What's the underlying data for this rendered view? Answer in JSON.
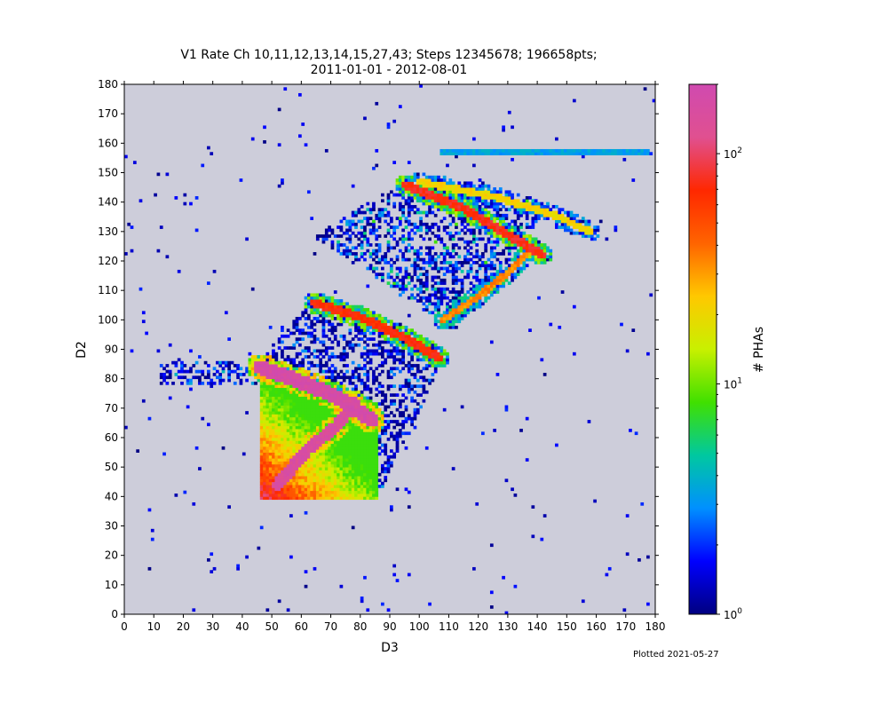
{
  "chart_data": {
    "type": "heatmap",
    "title_line1": "V1 Rate Ch 10,11,12,13,14,15,27,43; Steps 12345678; 196658pts;",
    "title_line2": "2011-01-01 - 2012-08-01",
    "xlabel": "D3",
    "ylabel": "D2",
    "xlim": [
      0,
      180
    ],
    "ylim": [
      0,
      180
    ],
    "xticks": [
      0,
      10,
      20,
      30,
      40,
      50,
      60,
      70,
      80,
      90,
      100,
      110,
      120,
      130,
      140,
      150,
      160,
      170,
      180
    ],
    "yticks": [
      0,
      10,
      20,
      30,
      40,
      50,
      60,
      70,
      80,
      90,
      100,
      110,
      120,
      130,
      140,
      150,
      160,
      170,
      180
    ],
    "bin_size": 1,
    "background_color": "#cdcdda",
    "colorbar": {
      "label": "# PHAs",
      "scale": "log",
      "range": [
        1,
        200
      ],
      "ticks": [
        {
          "value": 1,
          "base": "10",
          "exp": "0"
        },
        {
          "value": 10,
          "base": "10",
          "exp": "1"
        },
        {
          "value": 100,
          "base": "10",
          "exp": "2"
        }
      ],
      "colormap": [
        "#000080",
        "#0000ff",
        "#0090ff",
        "#00c8a0",
        "#40e000",
        "#c8f000",
        "#ffc800",
        "#ff6400",
        "#ff2800",
        "#e05090",
        "#d04ab0"
      ]
    },
    "features": [
      {
        "name": "main-track",
        "points": [
          [
            46,
            84
          ],
          [
            60,
            79
          ],
          [
            72,
            74
          ],
          [
            84,
            66
          ]
        ],
        "half_width": 2.5,
        "value": 200
      },
      {
        "name": "main-triangle",
        "polygon": [
          [
            46,
            39
          ],
          [
            46,
            84
          ],
          [
            86,
            72
          ],
          [
            86,
            39
          ]
        ],
        "value_range": [
          8,
          120
        ]
      },
      {
        "name": "central-stripe",
        "points": [
          [
            52,
            44
          ],
          [
            62,
            56
          ],
          [
            72,
            64
          ],
          [
            78,
            72
          ]
        ],
        "half_width": 2,
        "value": 180
      },
      {
        "name": "middle-band",
        "points": [
          [
            64,
            106
          ],
          [
            80,
            101
          ],
          [
            95,
            94
          ],
          [
            107,
            87
          ]
        ],
        "half_width": 1.5,
        "value": 80
      },
      {
        "name": "upper-band-1",
        "points": [
          [
            95,
            146
          ],
          [
            115,
            138
          ],
          [
            130,
            129
          ],
          [
            142,
            122
          ]
        ],
        "half_width": 1.5,
        "value": 90
      },
      {
        "name": "upper-band-2",
        "points": [
          [
            108,
            100
          ],
          [
            120,
            108
          ],
          [
            130,
            116
          ],
          [
            138,
            124
          ]
        ],
        "half_width": 1.2,
        "value": 40
      },
      {
        "name": "upper-band-3",
        "points": [
          [
            100,
            147
          ],
          [
            125,
            142
          ],
          [
            145,
            136
          ],
          [
            158,
            130
          ]
        ],
        "half_width": 1.2,
        "value": 25
      },
      {
        "name": "top-line",
        "points": [
          [
            107,
            157
          ],
          [
            178,
            157
          ]
        ],
        "half_width": 0.5,
        "value": 4
      },
      {
        "name": "left-horizontal-band",
        "polygon": [
          [
            12,
            78
          ],
          [
            12,
            86
          ],
          [
            46,
            86
          ],
          [
            46,
            78
          ]
        ],
        "value_range": [
          1,
          6
        ]
      },
      {
        "name": "upper-scatter-region",
        "polygon": [
          [
            64,
            128
          ],
          [
            95,
            148
          ],
          [
            145,
            140
          ],
          [
            112,
            96
          ]
        ],
        "value_range": [
          1,
          10
        ]
      },
      {
        "name": "middle-scatter-region",
        "polygon": [
          [
            46,
            86
          ],
          [
            64,
            108
          ],
          [
            108,
            86
          ],
          [
            86,
            40
          ]
        ],
        "value_range": [
          1,
          4
        ]
      }
    ],
    "footer": "Plotted 2021-05-27"
  }
}
